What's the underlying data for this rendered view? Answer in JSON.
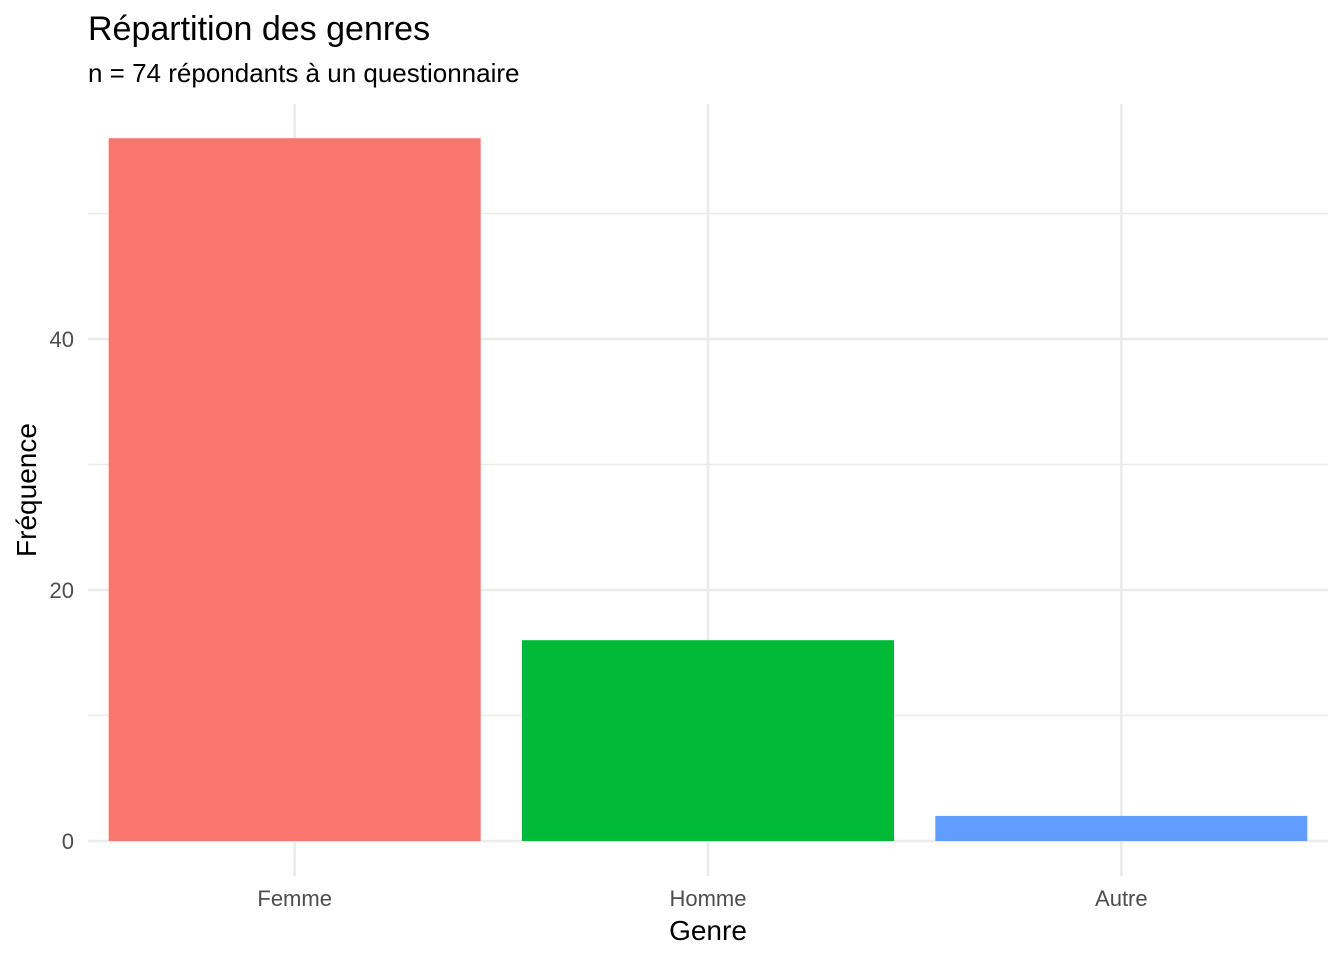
{
  "chart_data": {
    "type": "bar",
    "title": "Répartition des genres",
    "subtitle": "n = 74 répondants à un questionnaire",
    "xlabel": "Genre",
    "ylabel": "Fréquence",
    "categories": [
      "Femme",
      "Homme",
      "Autre"
    ],
    "values": [
      56,
      16,
      2
    ],
    "colors": [
      "#F8766D",
      "#00BA38",
      "#619CFF"
    ],
    "ylim": [
      0,
      58.8
    ],
    "y_ticks": [
      0,
      20,
      40
    ],
    "y_minor_ticks": [
      10,
      30,
      50
    ],
    "grid": true,
    "legend": "none"
  }
}
